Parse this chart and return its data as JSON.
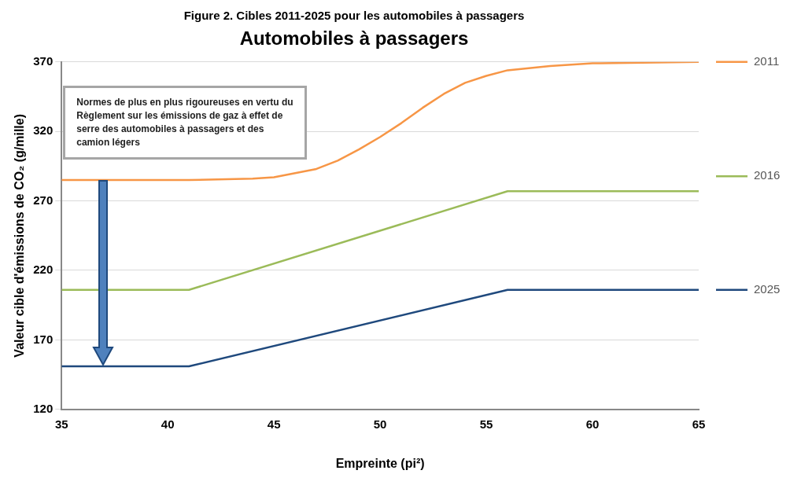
{
  "chart_data": {
    "type": "line",
    "title": "Figure 2. Cibles 2011-2025 pour les automobiles à passagers",
    "subtitle": "Automobiles à passagers",
    "xlabel": "Empreinte (pi²)",
    "ylabel": "Valeur cible d'émissions de CO₂ (g/mille)",
    "annotations": [
      "Normes de plus en plus rigoureuses en vertu du Règlement sur les émissions de gaz à effet de serre des automobiles à passagers et des camion légers"
    ],
    "series": [
      {
        "name": "2011",
        "color": "#f79646",
        "x": [
          35,
          41,
          44,
          45,
          47,
          48,
          49,
          50,
          51,
          52,
          53,
          54,
          55,
          56,
          58,
          60,
          65
        ],
        "values": [
          285,
          285,
          286,
          287,
          293,
          299,
          307,
          316,
          326,
          337,
          347,
          355,
          360,
          364,
          367,
          369,
          370
        ]
      },
      {
        "name": "2016",
        "color": "#9bbb59",
        "x": [
          35,
          41,
          56,
          65
        ],
        "values": [
          206,
          206,
          277,
          277
        ]
      },
      {
        "name": "2025",
        "color": "#1f497d",
        "x": [
          35,
          41,
          56,
          65
        ],
        "values": [
          151,
          151,
          206,
          206
        ]
      }
    ],
    "xlim": [
      35,
      65
    ],
    "xticks": [
      35,
      40,
      45,
      50,
      55,
      60,
      65
    ],
    "ylim": [
      120,
      370
    ],
    "yticks": [
      120,
      170,
      220,
      270,
      320,
      370
    ],
    "grid": "y",
    "legend": "right",
    "marker": "none",
    "line_style": "solid"
  }
}
